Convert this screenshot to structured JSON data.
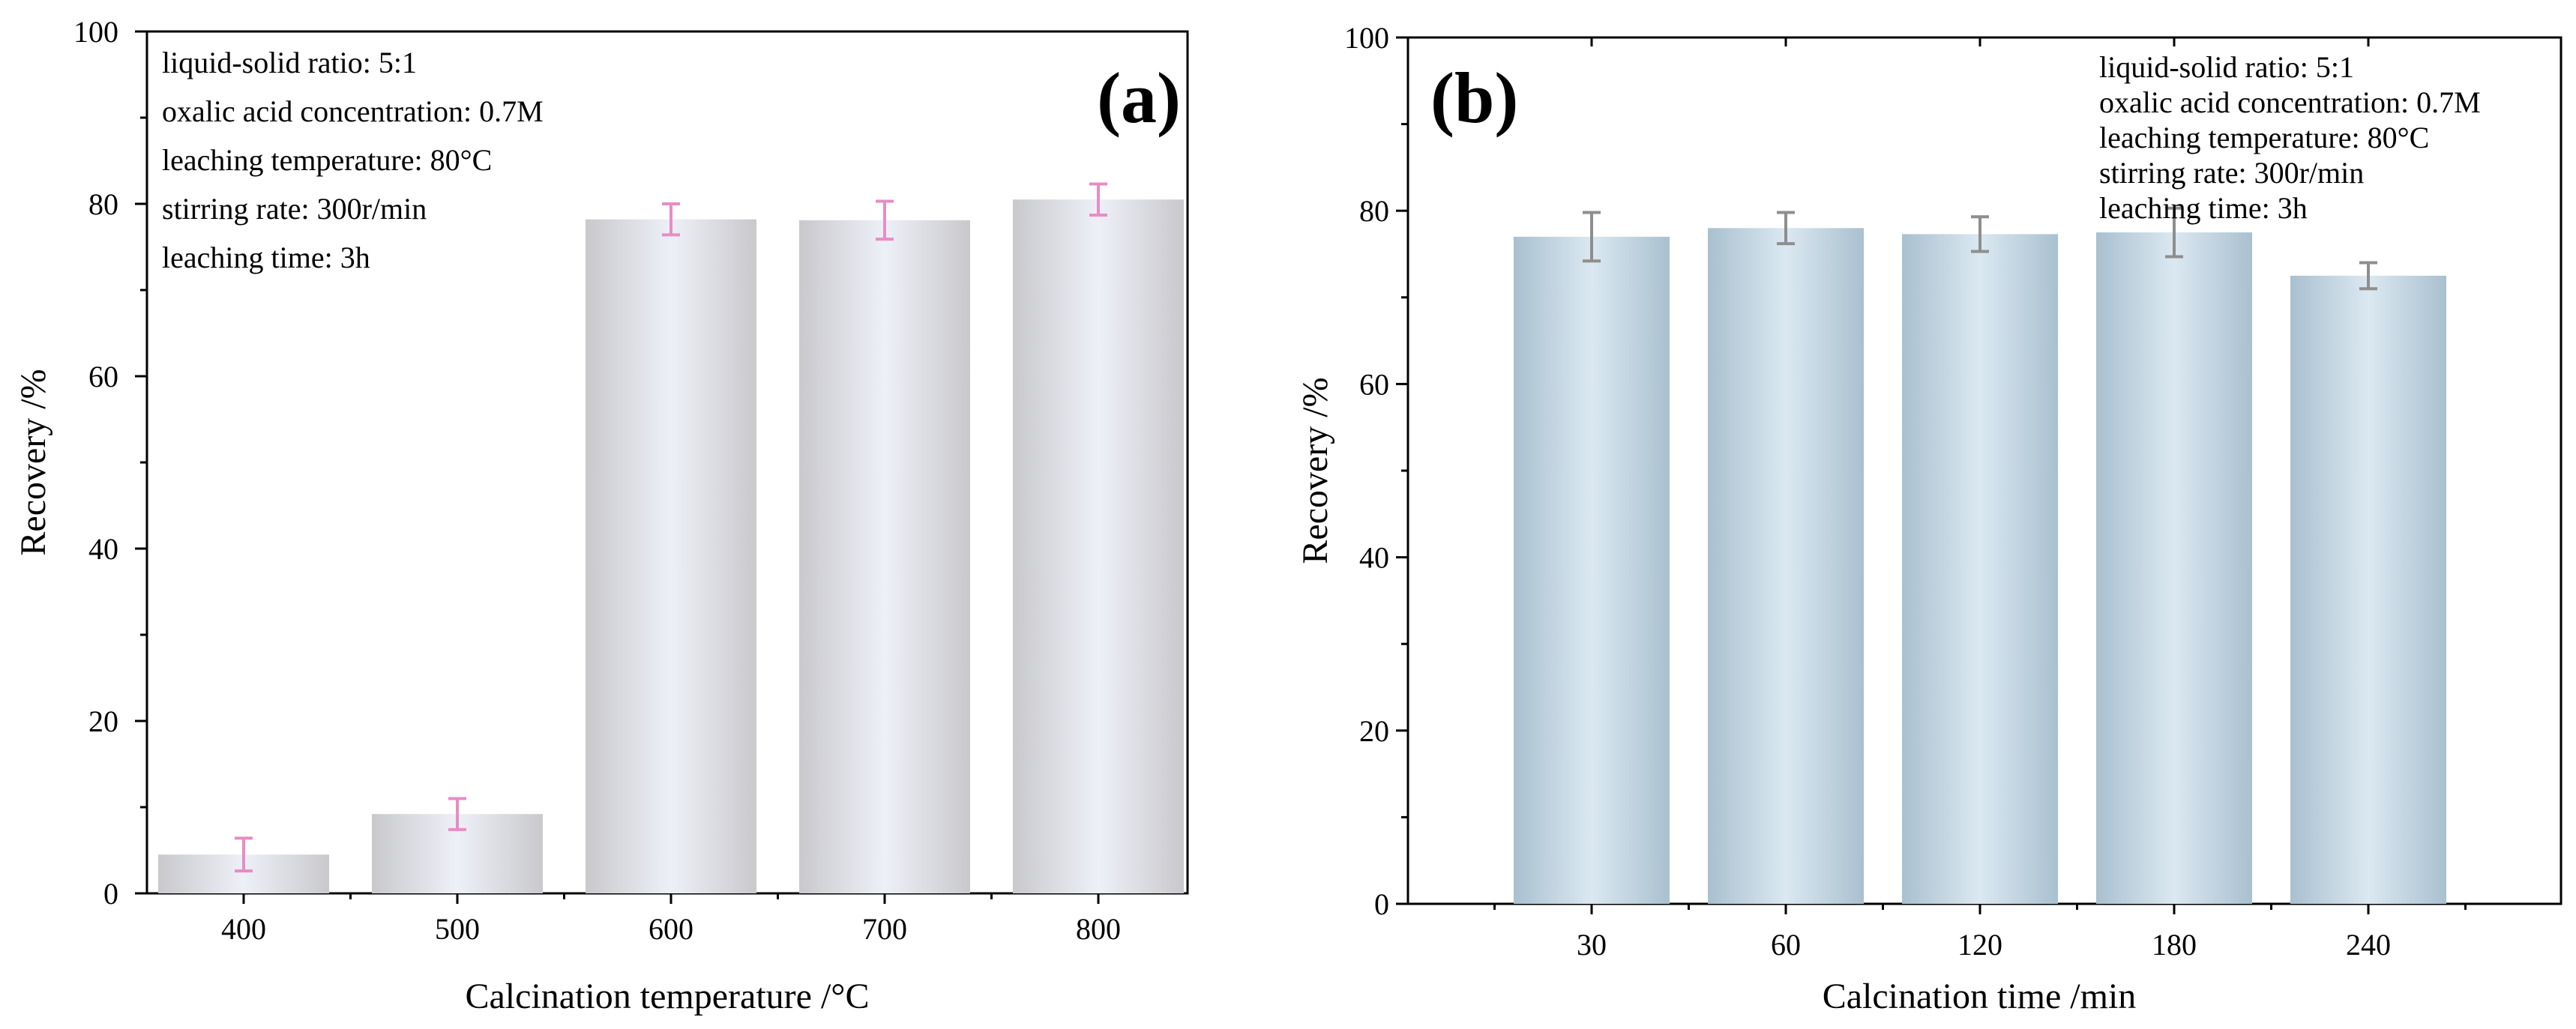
{
  "colors": {
    "panel_a_bar_edge": "#c9c9cc",
    "panel_a_bar_center": "#eef0f8",
    "panel_a_error": "#e88cc4",
    "panel_b_bar_edge": "#a9c0cf",
    "panel_b_bar_center": "#dbe8f1",
    "panel_b_error": "#8e8e8e",
    "axis": "#000000"
  },
  "chart_data": [
    {
      "panel": "a",
      "type": "bar",
      "panel_label": "(a)",
      "categories": [
        "400",
        "500",
        "600",
        "700",
        "800"
      ],
      "values": [
        4.5,
        9.2,
        78.2,
        78.1,
        80.5
      ],
      "errors": [
        1.9,
        1.8,
        1.8,
        2.2,
        1.8
      ],
      "xlabel": "Calcination temperature /°C",
      "ylabel": "Recovery /%",
      "ylim": [
        0,
        100
      ],
      "yticks": [
        "0",
        "20",
        "40",
        "60",
        "80",
        "100"
      ],
      "annotations": [
        "liquid-solid ratio: 5:1",
        "oxalic acid concentration: 0.7M",
        "leaching temperature: 80°C",
        "stirring rate: 300r/min",
        "leaching time: 3h"
      ]
    },
    {
      "panel": "b",
      "type": "bar",
      "panel_label": "(b)",
      "categories": [
        "30",
        "60",
        "120",
        "180",
        "240"
      ],
      "values": [
        77.0,
        78.0,
        77.3,
        77.5,
        72.5
      ],
      "errors": [
        2.8,
        1.8,
        2.0,
        2.8,
        1.5
      ],
      "xlabel": "Calcination time /min",
      "ylabel": "Recovery /%",
      "ylim": [
        0,
        100
      ],
      "yticks": [
        "0",
        "20",
        "40",
        "60",
        "80",
        "100"
      ],
      "annotations": [
        "liquid-solid ratio: 5:1",
        "oxalic acid concentration: 0.7M",
        "leaching temperature: 80°C",
        "stirring rate: 300r/min",
        "leaching time: 3h"
      ]
    }
  ]
}
